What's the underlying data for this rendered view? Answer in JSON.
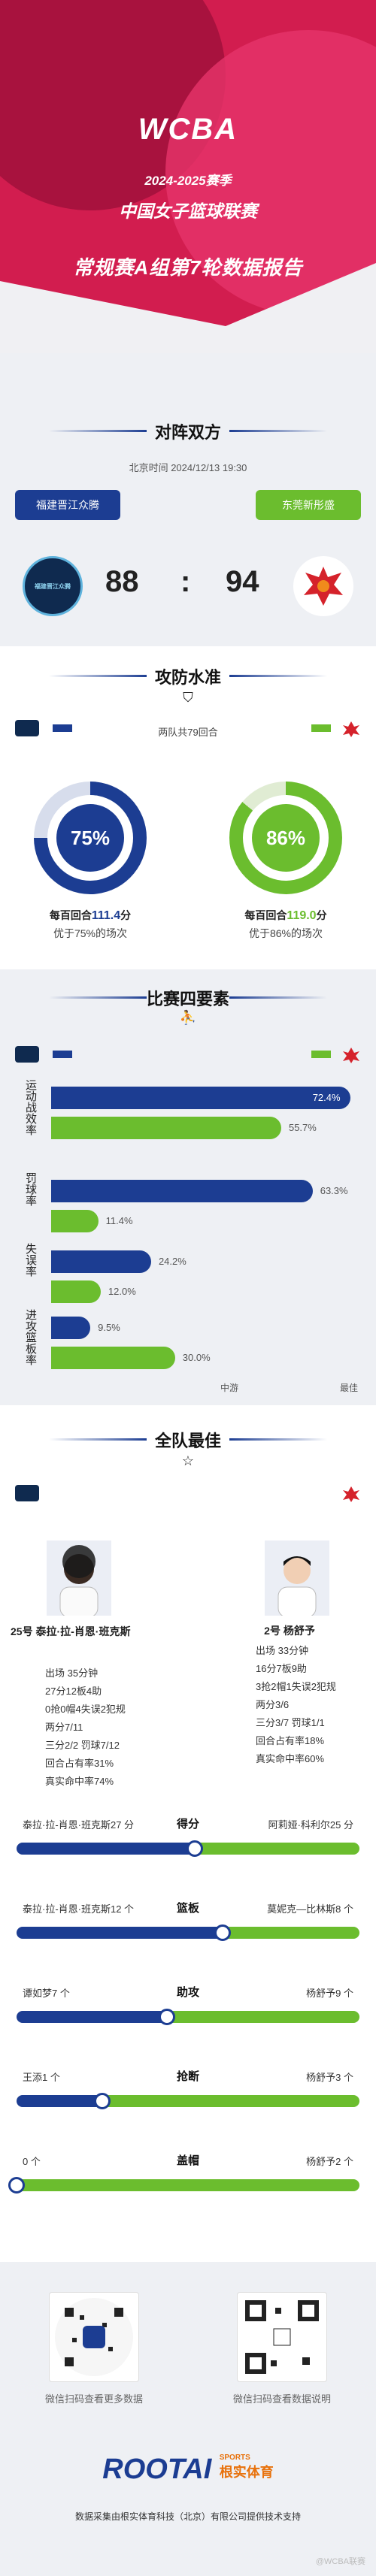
{
  "header": {
    "logo": "WCBA",
    "season": "2024-2025赛季",
    "league": "中国女子篮球联赛",
    "report": "常规赛A组第7轮数据报告"
  },
  "matchup": {
    "title": "对阵双方",
    "time": "北京时间 2024/12/13 19:30",
    "home": "福建晋江众腾",
    "away": "东莞新彤盛",
    "home_score": "88",
    "sep": ":",
    "away_score": "94",
    "home_logo": "福建晋江众腾",
    "away_logo": "东莞新彤盛"
  },
  "offense": {
    "title": "攻防水准",
    "possessions": "两队共79回合",
    "home": {
      "pct": "75%",
      "per100_label": "每百回合",
      "per100": "111.4",
      "unit": "分",
      "note": "优于75%的场次",
      "pct_value": 75
    },
    "away": {
      "pct": "86%",
      "per100_label": "每百回合",
      "per100": "119.0",
      "unit": "分",
      "note": "优于86%的场次",
      "pct_value": 86
    }
  },
  "four": {
    "title": "比赛四要素",
    "rows": [
      {
        "label": "运动战效率",
        "home": "72.4%",
        "away": "55.7%",
        "home_v": 72.4,
        "away_v": 55.7
      },
      {
        "label": "罚球率",
        "home": "63.3%",
        "away": "11.4%",
        "home_v": 63.3,
        "away_v": 11.4
      },
      {
        "label": "失误率",
        "home": "24.2%",
        "away": "12.0%",
        "home_v": 24.2,
        "away_v": 12.0
      },
      {
        "label": "进攻篮板率",
        "home": "9.5%",
        "away": "30.0%",
        "home_v": 9.5,
        "away_v": 30.0
      }
    ],
    "scale_mid": "中游",
    "scale_max": "最佳"
  },
  "best": {
    "title": "全队最佳",
    "home": {
      "name": "25号 泰拉·拉-肖恩·班克斯",
      "lines": [
        "出场 35分钟",
        "27分12板4助",
        "0抢0帽4失误2犯规",
        "两分7/11",
        "三分2/2 罚球7/12",
        "回合占有率31%",
        "真实命中率74%"
      ]
    },
    "away": {
      "name": "2号 杨舒予",
      "lines": [
        "出场 33分钟",
        "16分7板9助",
        "3抢2帽1失误2犯规",
        "两分3/6",
        "三分3/7 罚球1/1",
        "回合占有率18%",
        "真实命中率60%"
      ]
    }
  },
  "compare": [
    {
      "cat": "得分",
      "home": "泰拉·拉-肖恩·班克斯27 分",
      "away": "阿莉娅·科利尔25 分",
      "home_v": 27,
      "away_v": 25
    },
    {
      "cat": "篮板",
      "home": "泰拉·拉-肖恩·班克斯12 个",
      "away": "莫妮克—比林斯8 个",
      "home_v": 12,
      "away_v": 8
    },
    {
      "cat": "助攻",
      "home": "谭如梦7 个",
      "away": "杨舒予9 个",
      "home_v": 7,
      "away_v": 9
    },
    {
      "cat": "抢断",
      "home": "王添1 个",
      "away": "杨舒予3 个",
      "home_v": 1,
      "away_v": 3
    },
    {
      "cat": "盖帽",
      "home": "0 个",
      "away": "杨舒予2 个",
      "home_v": 0,
      "away_v": 2
    }
  ],
  "footer": {
    "qr1": "微信扫码查看更多数据",
    "qr2": "微信扫码查看数据说明",
    "brand": "ROOTAI",
    "brand_tag": "SPORTS",
    "brand_cn": "根实体育",
    "note": "数据采集由根实体育科技（北京）有限公司提供技术支持",
    "watermark": "@WCBA联赛"
  },
  "colors": {
    "home": "#1c3d92",
    "away": "#6bbd2e",
    "accent": "#d21d4f"
  }
}
